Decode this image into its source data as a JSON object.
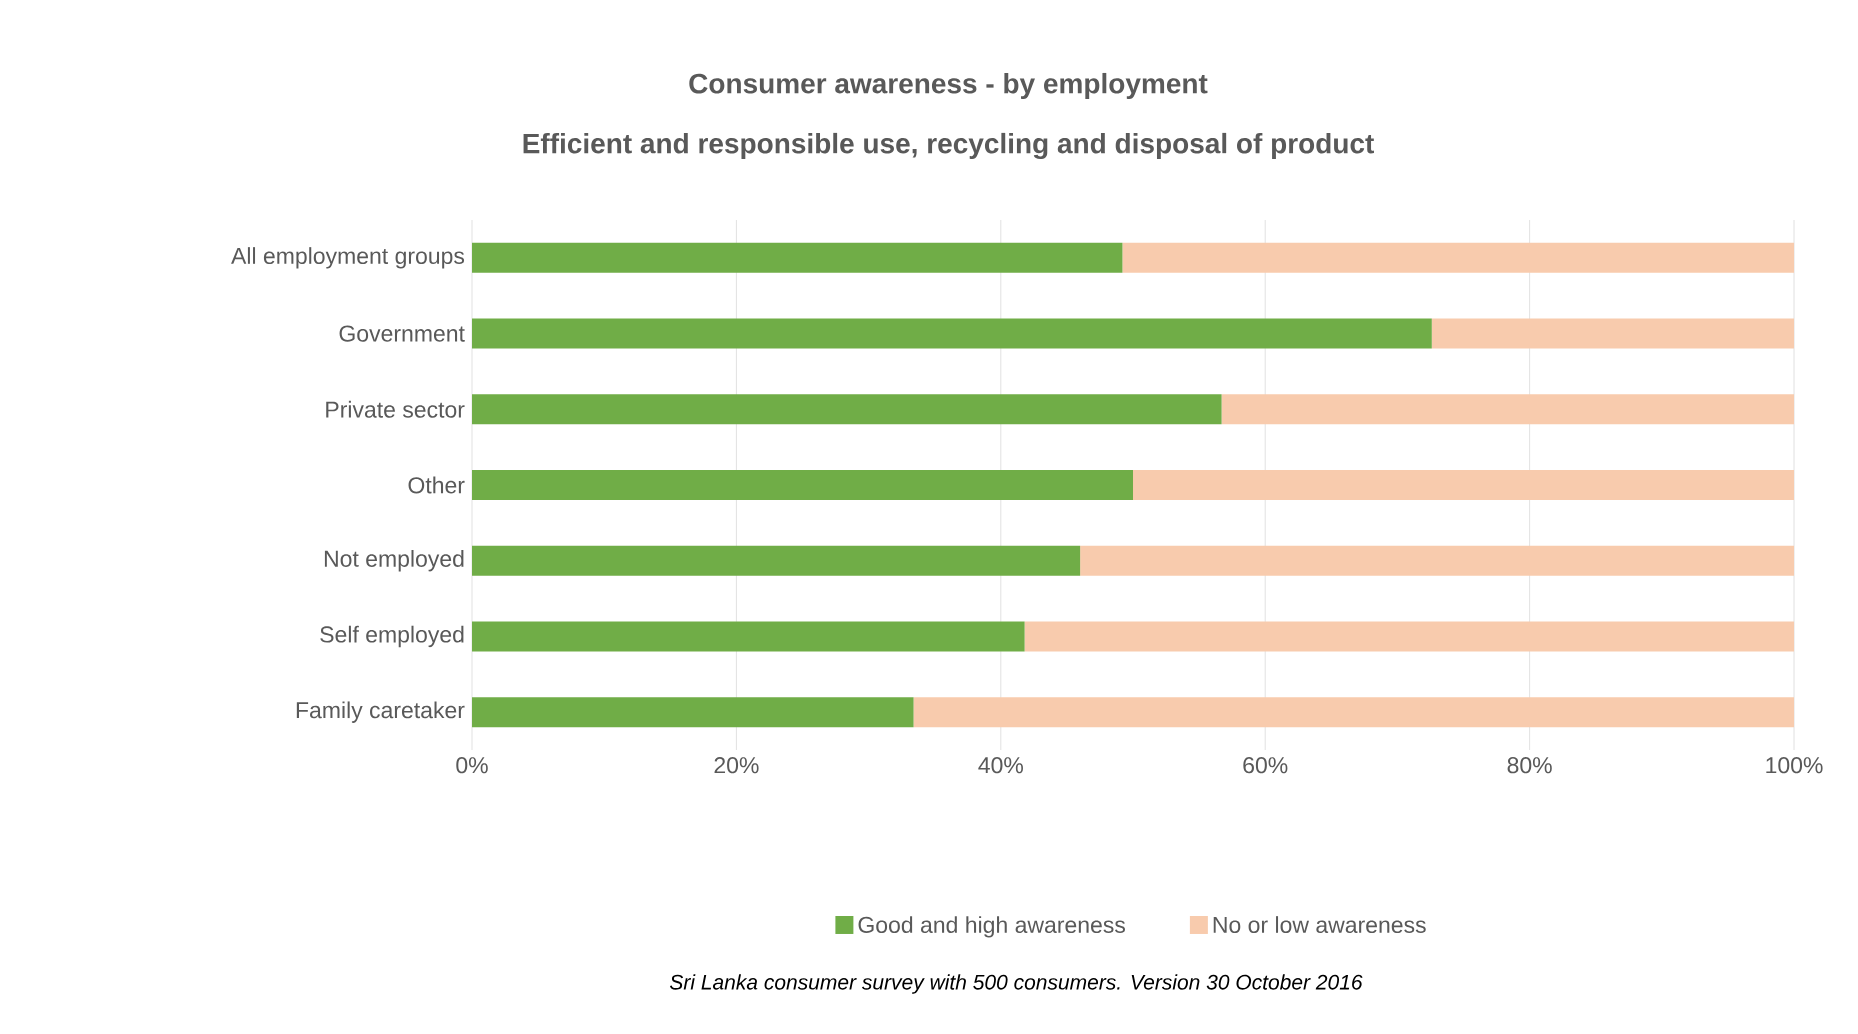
{
  "chart_data": {
    "type": "bar",
    "orientation": "horizontal",
    "stacked": true,
    "title": "Consumer awareness  - by employment",
    "subtitle": "Efficient and responsible use, recycling and disposal of product",
    "categories": [
      "All employment groups",
      "Government",
      "Private sector",
      "Other",
      "Not employed",
      "Self employed",
      "Family caretaker"
    ],
    "series": [
      {
        "name": "Good and high awareness",
        "color": "#70ad47",
        "values": [
          49.2,
          72.6,
          56.7,
          50.0,
          46.0,
          41.8,
          33.4
        ]
      },
      {
        "name": "No or low awareness",
        "color": "#f8cbad",
        "values": [
          50.8,
          27.4,
          43.3,
          50.0,
          54.0,
          58.2,
          66.6
        ]
      }
    ],
    "xlim": [
      0,
      100
    ],
    "xticks": [
      {
        "value": 0,
        "label": "0%"
      },
      {
        "value": 20,
        "label": "20%"
      },
      {
        "value": 40,
        "label": "40%"
      },
      {
        "value": 60,
        "label": "60%"
      },
      {
        "value": 80,
        "label": "80%"
      },
      {
        "value": 100,
        "label": "100%"
      }
    ],
    "grid": "x",
    "legend": "bottom",
    "annotations": [
      "*Sri Lanka consumer survey with 500 consumers. Version 30 October 2016*"
    ]
  }
}
